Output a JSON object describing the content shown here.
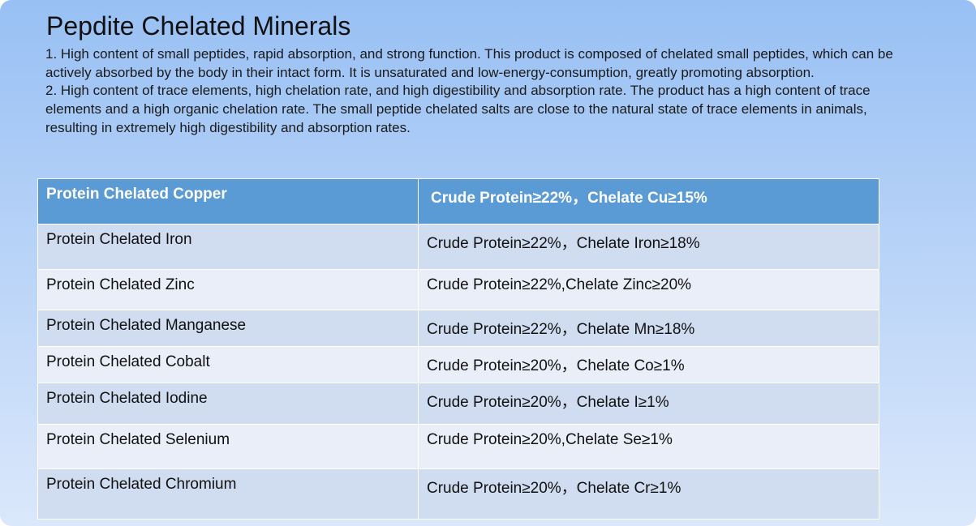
{
  "title": "Pepdite Chelated Minerals",
  "paragraphs": [
    "1. High content of small peptides, rapid absorption, and strong function. This product is composed of chelated small peptides, which can be actively absorbed by the body in their intact form. It is unsaturated and low-energy-consumption, greatly promoting absorption.",
    "2. High content of trace elements, high chelation rate, and high digestibility and absorption rate. The product has a high content of trace elements and a high organic chelation rate. The small peptide chelated salts are close to the natural state of trace elements in animals, resulting in extremely high digestibility and absorption rates."
  ],
  "table": {
    "header": [
      "Protein Chelated Copper",
      "Crude Protein≥22%，Chelate Cu≥15%"
    ],
    "rows": [
      [
        "Protein Chelated Iron",
        "Crude Protein≥22%，Chelate Iron≥18%"
      ],
      [
        "Protein Chelated Zinc",
        "Crude Protein≥22%,Chelate Zinc≥20%"
      ],
      [
        "Protein Chelated Manganese",
        "Crude Protein≥22%，Chelate Mn≥18%"
      ],
      [
        "Protein Chelated Cobalt",
        "Crude Protein≥20%，Chelate Co≥1%"
      ],
      [
        "Protein Chelated Iodine",
        "Crude Protein≥20%，Chelate I≥1%"
      ],
      [
        "Protein Chelated Selenium",
        "Crude Protein≥20%,Chelate Se≥1%"
      ],
      [
        "Protein Chelated Chromium",
        "Crude Protein≥20%，Chelate Cr≥1%"
      ]
    ]
  }
}
